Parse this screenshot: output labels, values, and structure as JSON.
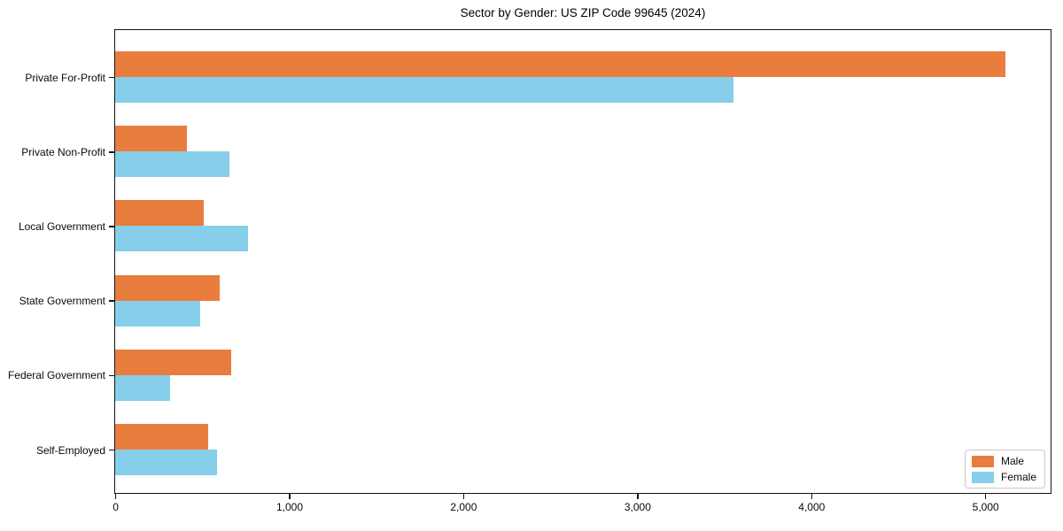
{
  "chart_data": {
    "type": "bar",
    "orientation": "horizontal",
    "title": "Sector by Gender: US ZIP Code 99645 (2024)",
    "categories": [
      "Private For-Profit",
      "Private Non-Profit",
      "Local Government",
      "State Government",
      "Federal Government",
      "Self-Employed"
    ],
    "series": [
      {
        "name": "Male",
        "color": "#e87d3e",
        "values": [
          5115,
          410,
          510,
          600,
          665,
          535
        ]
      },
      {
        "name": "Female",
        "color": "#87ceeb",
        "values": [
          3555,
          655,
          765,
          490,
          315,
          585
        ]
      }
    ],
    "xlabel": "",
    "ylabel": "",
    "xlim": [
      0,
      5370
    ],
    "x_ticks": {
      "values": [
        0,
        1000,
        2000,
        3000,
        4000,
        5000
      ],
      "labels": [
        "0",
        "1,000",
        "2,000",
        "3,000",
        "4,000",
        "5,000"
      ]
    },
    "legend": {
      "position": "lower right",
      "entries": [
        "Male",
        "Female"
      ]
    },
    "grid": false,
    "colors": {
      "axis": "#141414",
      "background": "#ffffff",
      "legend_border": "#c9c9c9",
      "text": "#0a0a0a"
    }
  }
}
